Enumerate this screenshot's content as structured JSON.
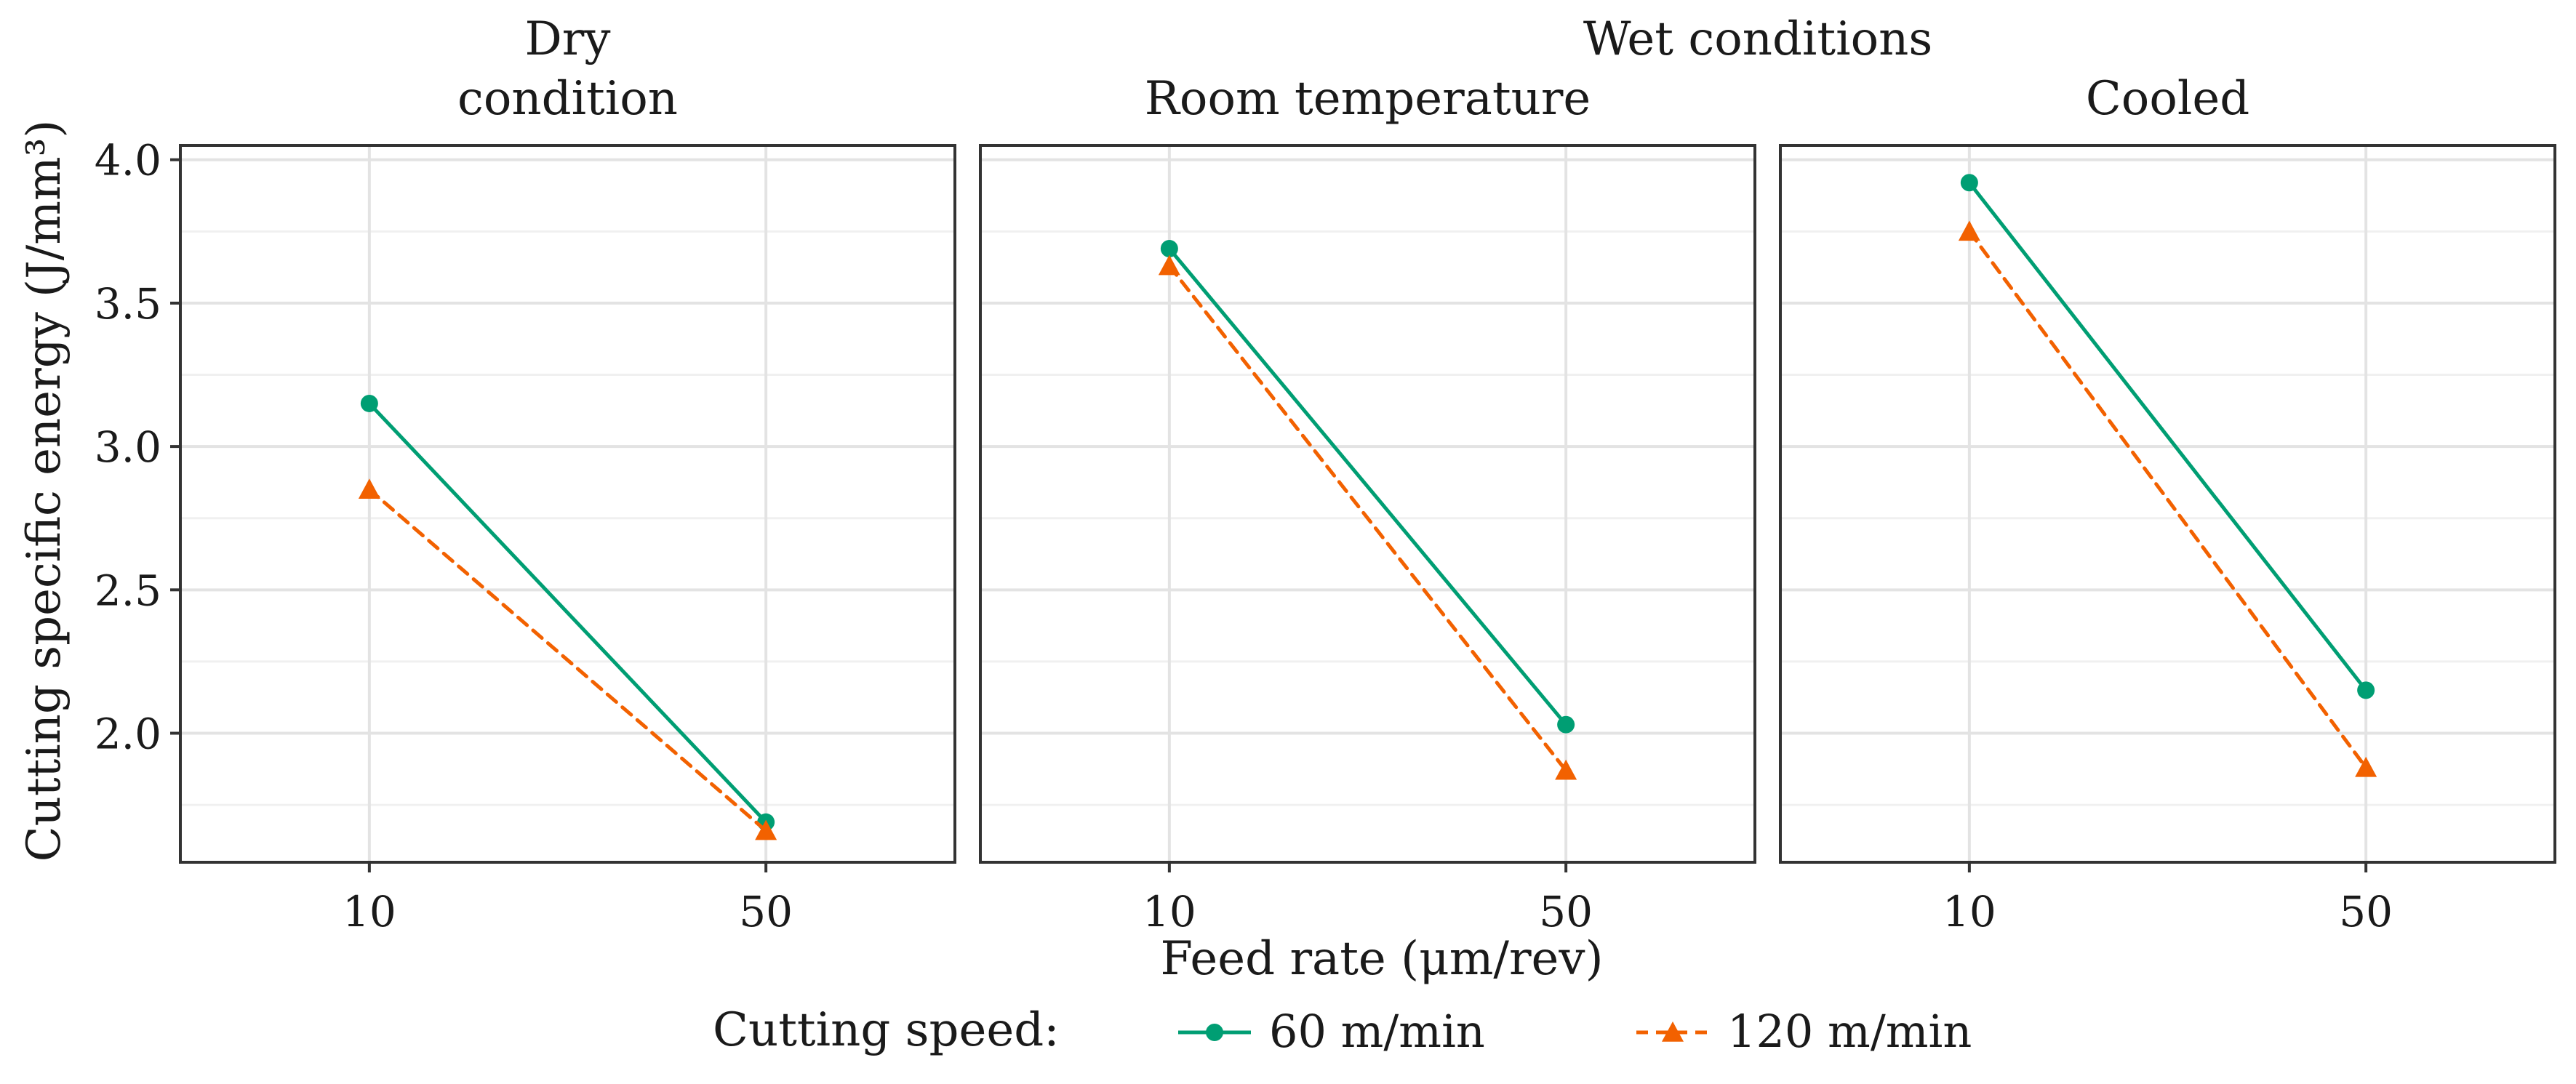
{
  "chart_data": {
    "type": "line",
    "facet_header": "Wet conditions",
    "ylabel": "Cutting specific energy (J/mm³)",
    "xlabel": "Feed rate (μm/rev)",
    "ylim": [
      1.55,
      4.05
    ],
    "yticks": [
      "2.0",
      "2.5",
      "3.0",
      "3.5",
      "4.0"
    ],
    "categories": [
      "10",
      "50"
    ],
    "legend": {
      "title": "Cutting speed:",
      "position": "bottom"
    },
    "series_styles": [
      {
        "name": "60 m/min",
        "color": "#009E73",
        "marker": "circle",
        "dash": "solid"
      },
      {
        "name": "120 m/min",
        "color": "#F26100",
        "marker": "triangle",
        "dash": "dashed"
      }
    ],
    "panels": [
      {
        "title_lines": [
          "Dry",
          "condition"
        ],
        "series": [
          {
            "name": "60 m/min",
            "values": [
              3.15,
              1.69
            ]
          },
          {
            "name": "120 m/min",
            "values": [
              2.85,
              1.66
            ]
          }
        ]
      },
      {
        "title_lines": [
          "Room temperature"
        ],
        "series": [
          {
            "name": "60 m/min",
            "values": [
              3.69,
              2.03
            ]
          },
          {
            "name": "120 m/min",
            "values": [
              3.63,
              1.87
            ]
          }
        ]
      },
      {
        "title_lines": [
          "Cooled"
        ],
        "series": [
          {
            "name": "60 m/min",
            "values": [
              3.92,
              2.15
            ]
          },
          {
            "name": "120 m/min",
            "values": [
              3.75,
              1.88
            ]
          }
        ]
      }
    ]
  }
}
